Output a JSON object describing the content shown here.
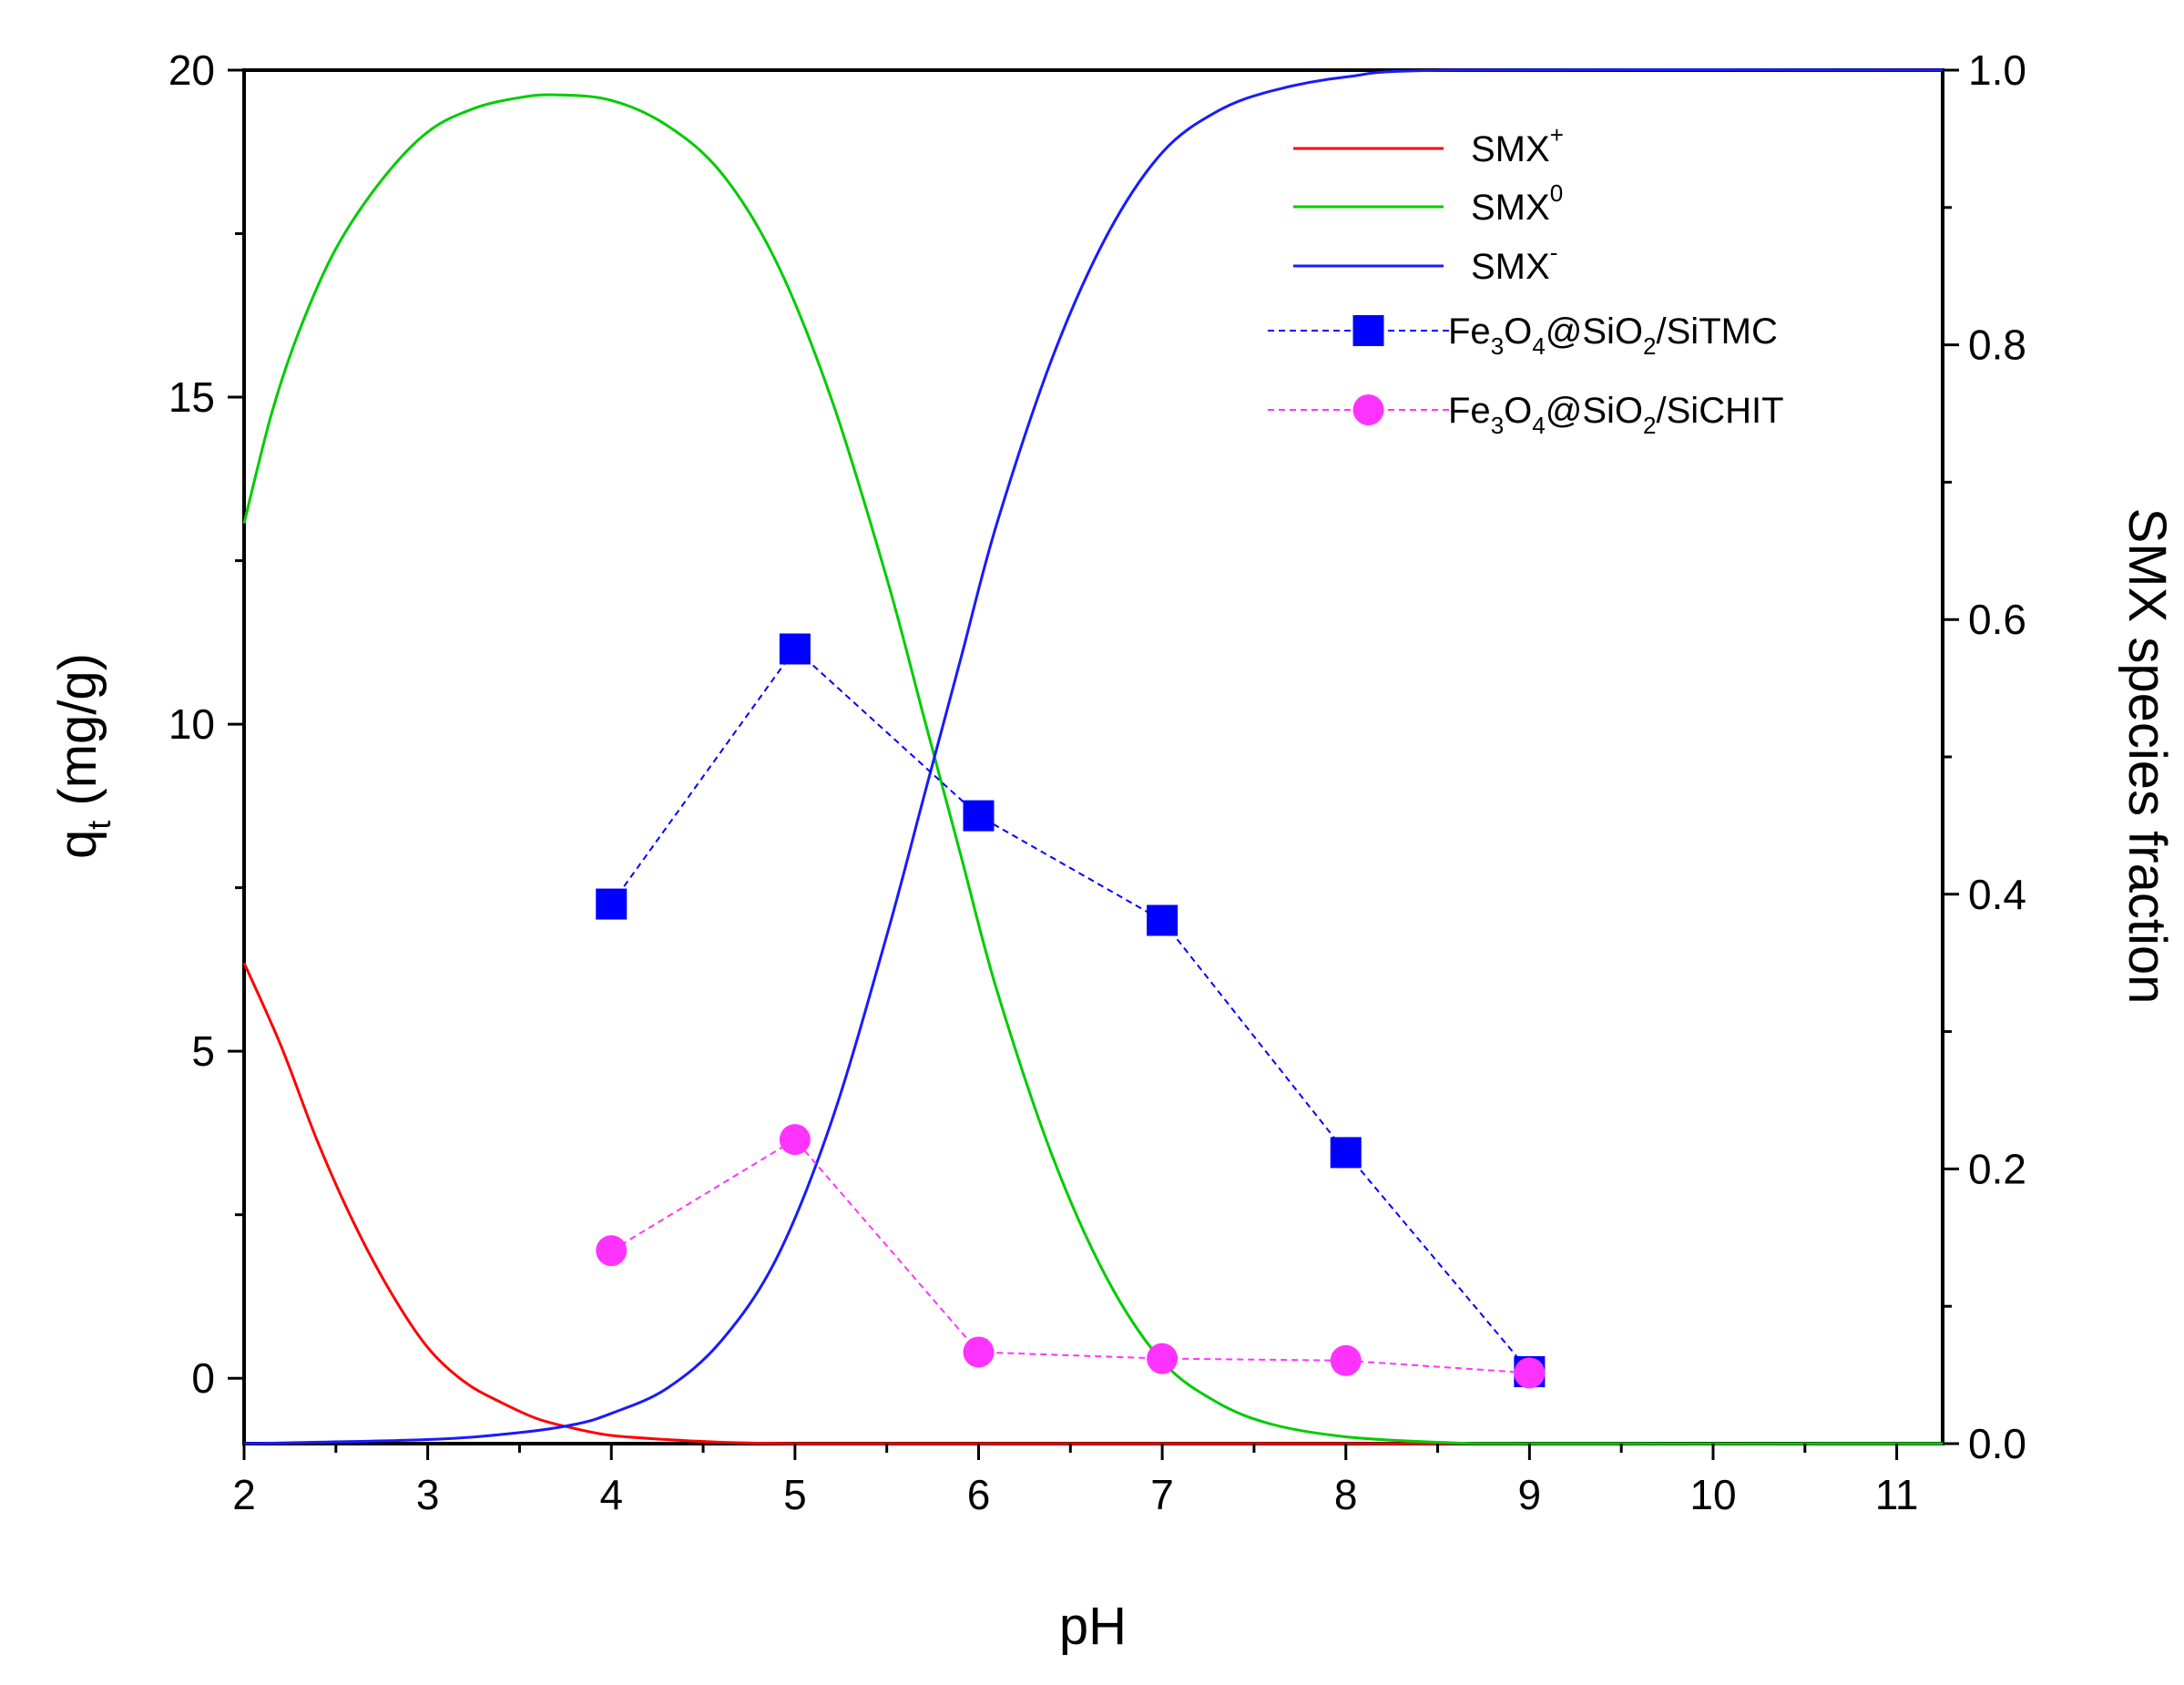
{
  "chart_data": {
    "type": "line",
    "title": "",
    "xlabel": "pH",
    "ylabel_left": {
      "main": "q",
      "subscript": "t",
      "suffix": " (mg/g)"
    },
    "ylabel_right": "SMX species fraction",
    "xlim": [
      2,
      11.25
    ],
    "ylim_left": [
      -1,
      20
    ],
    "ylim_right": [
      0,
      1
    ],
    "x_ticks": [
      2,
      3,
      4,
      5,
      6,
      7,
      8,
      9,
      10,
      11
    ],
    "y_ticks_left": [
      0,
      5,
      10,
      15,
      20
    ],
    "y_ticks_right": [
      "0.0",
      "0.2",
      "0.4",
      "0.6",
      "0.8",
      "1.0"
    ],
    "species": [
      {
        "name": "SMX",
        "charge": "+",
        "axis": "right",
        "color": "#ff0000",
        "x": [
          2.0,
          2.2,
          2.4,
          2.6,
          2.8,
          3.0,
          3.2,
          3.4,
          3.6,
          3.8,
          4.0,
          4.3,
          4.6,
          5.0,
          6.0,
          8.0,
          11.25
        ],
        "y": [
          0.35,
          0.29,
          0.22,
          0.16,
          0.11,
          0.07,
          0.045,
          0.03,
          0.018,
          0.011,
          0.006,
          0.003,
          0.001,
          0.0,
          0.0,
          0.0,
          0.0
        ]
      },
      {
        "name": "SMX",
        "charge": "0",
        "axis": "right",
        "color": "#00cc00",
        "x": [
          2.0,
          2.15,
          2.3,
          2.5,
          2.75,
          3.0,
          3.25,
          3.5,
          3.7,
          4.0,
          4.3,
          4.6,
          4.9,
          5.2,
          5.5,
          5.7,
          5.9,
          6.1,
          6.4,
          6.7,
          7.0,
          7.3,
          7.6,
          8.0,
          8.5,
          9.0,
          11.25
        ],
        "y": [
          0.67,
          0.75,
          0.81,
          0.87,
          0.92,
          0.955,
          0.972,
          0.98,
          0.982,
          0.978,
          0.96,
          0.925,
          0.86,
          0.76,
          0.63,
          0.53,
          0.43,
          0.33,
          0.21,
          0.12,
          0.06,
          0.03,
          0.014,
          0.005,
          0.001,
          0.0,
          0.0
        ]
      },
      {
        "name": "SMX",
        "charge": "-",
        "axis": "right",
        "color": "#1a1aff",
        "x": [
          2.0,
          3.0,
          3.5,
          3.8,
          4.0,
          4.3,
          4.6,
          4.9,
          5.2,
          5.5,
          5.7,
          5.9,
          6.1,
          6.4,
          6.7,
          7.0,
          7.3,
          7.6,
          8.0,
          8.6,
          11.25
        ],
        "y": [
          0.0,
          0.003,
          0.008,
          0.014,
          0.022,
          0.04,
          0.075,
          0.135,
          0.235,
          0.37,
          0.47,
          0.57,
          0.67,
          0.79,
          0.88,
          0.94,
          0.97,
          0.985,
          0.995,
          1.0,
          1.0
        ]
      }
    ],
    "series": [
      {
        "name_parts": [
          "Fe",
          "3",
          "O",
          "4",
          "@SiO",
          "2",
          "/SiTMC"
        ],
        "axis": "left",
        "color": "#0000ff",
        "marker": "square",
        "x": [
          4,
          5,
          6,
          7,
          8,
          9
        ],
        "y": [
          7.25,
          11.15,
          8.6,
          7.0,
          3.45,
          0.1
        ]
      },
      {
        "name_parts": [
          "Fe",
          "3",
          "O",
          "4",
          "@SiO",
          "2",
          "/SiCHIT"
        ],
        "axis": "left",
        "color": "#ff33ff",
        "marker": "circle",
        "x": [
          4,
          5,
          6,
          7,
          8,
          9
        ],
        "y": [
          1.95,
          3.65,
          0.4,
          0.3,
          0.27,
          0.08
        ]
      }
    ],
    "legend_position": "top-right"
  }
}
